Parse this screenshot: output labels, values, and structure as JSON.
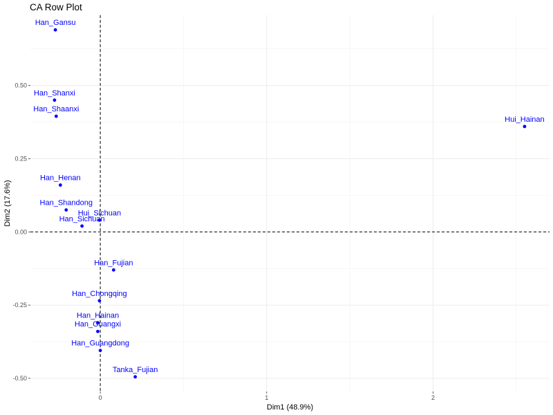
{
  "chart_data": {
    "type": "scatter",
    "title": "CA Row Plot",
    "xlabel": "Dim1 (48.9%)",
    "ylabel": "Dim2 (17.6%)",
    "xlim": [
      -0.42,
      2.7
    ],
    "ylim": [
      -0.545,
      0.74
    ],
    "xticks": [
      0,
      1,
      2
    ],
    "xtick_labels": [
      "0",
      "1",
      "2"
    ],
    "yticks": [
      -0.5,
      -0.25,
      0.0,
      0.25,
      0.5
    ],
    "ytick_labels": [
      "-0.50",
      "-0.25",
      "0.00",
      "0.25",
      "0.50"
    ],
    "grid": true,
    "reference_lines": {
      "x": 0,
      "y": 0,
      "style": "dashed"
    },
    "point_color": "#0000FF",
    "points": [
      {
        "label": "Han_Gansu",
        "x": -0.27,
        "y": 0.69
      },
      {
        "label": "Han_Shanxi",
        "x": -0.275,
        "y": 0.45
      },
      {
        "label": "Han_Shaanxi",
        "x": -0.265,
        "y": 0.395
      },
      {
        "label": "Han_Henan",
        "x": -0.24,
        "y": 0.16
      },
      {
        "label": "Han_Shandong",
        "x": -0.205,
        "y": 0.075
      },
      {
        "label": "Hui_Sichuan",
        "x": -0.005,
        "y": 0.04
      },
      {
        "label": "Han_Sichuan",
        "x": -0.11,
        "y": 0.02
      },
      {
        "label": "Hui_Hainan",
        "x": 2.55,
        "y": 0.36
      },
      {
        "label": "Han_Fujian",
        "x": 0.08,
        "y": -0.13
      },
      {
        "label": "Han_Chongqing",
        "x": -0.005,
        "y": -0.235
      },
      {
        "label": "Han_Hainan",
        "x": -0.015,
        "y": -0.31
      },
      {
        "label": "Han_Guangxi",
        "x": -0.015,
        "y": -0.34
      },
      {
        "label": "Han_Guangdong",
        "x": 0.0,
        "y": -0.405
      },
      {
        "label": "Tanka_Fujian",
        "x": 0.21,
        "y": -0.495
      }
    ]
  }
}
